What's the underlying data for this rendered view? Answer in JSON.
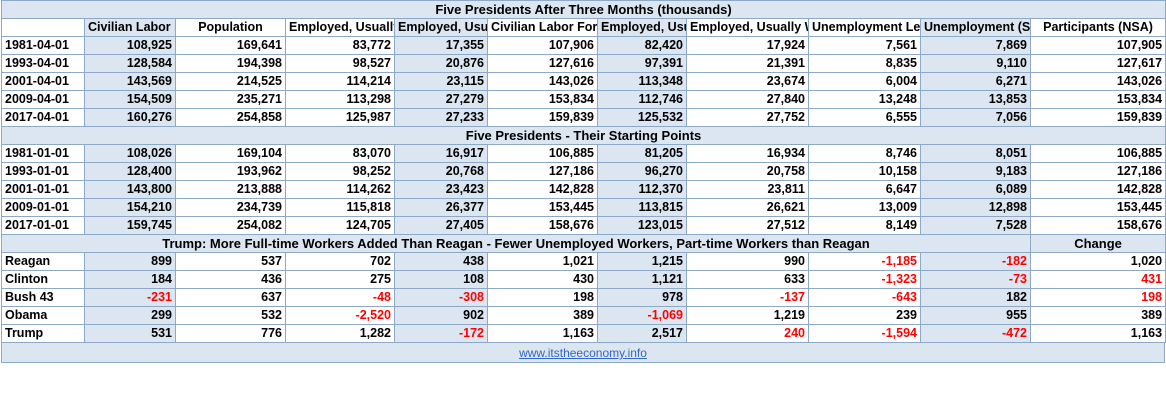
{
  "title": "Five Presidents After Three Months (thousands)",
  "columns": [
    "",
    "Civilian Labor Force (SA)",
    "Population",
    "Employed, Usually Work Full Time (SA)",
    "Employed, Usually Work Part Time (SA)",
    "Civilian Labor Force (NSA)",
    "Employed, Usually Work Full Time (NSA)",
    "Employed, Usually Work Part Time (NSA)",
    "Unemployment Level (NSA)",
    "Unemployment (SA)",
    "Participants (NSA)"
  ],
  "section1": {
    "rows": [
      [
        "1981-04-01",
        "108,925",
        "169,641",
        "83,772",
        "17,355",
        "107,906",
        "82,420",
        "17,924",
        "7,561",
        "7,869",
        "107,905"
      ],
      [
        "1993-04-01",
        "128,584",
        "194,398",
        "98,527",
        "20,876",
        "127,616",
        "97,391",
        "21,391",
        "8,835",
        "9,110",
        "127,617"
      ],
      [
        "2001-04-01",
        "143,569",
        "214,525",
        "114,214",
        "23,115",
        "143,026",
        "113,348",
        "23,674",
        "6,004",
        "6,271",
        "143,026"
      ],
      [
        "2009-04-01",
        "154,509",
        "235,271",
        "113,298",
        "27,279",
        "153,834",
        "112,746",
        "27,840",
        "13,248",
        "13,853",
        "153,834"
      ],
      [
        "2017-04-01",
        "160,276",
        "254,858",
        "125,987",
        "27,233",
        "159,839",
        "125,532",
        "27,752",
        "6,555",
        "7,056",
        "159,839"
      ]
    ]
  },
  "section2": {
    "title": "Five Presidents - Their Starting Points",
    "rows": [
      [
        "1981-01-01",
        "108,026",
        "169,104",
        "83,070",
        "16,917",
        "106,885",
        "81,205",
        "16,934",
        "8,746",
        "8,051",
        "106,885"
      ],
      [
        "1993-01-01",
        "128,400",
        "193,962",
        "98,252",
        "20,768",
        "127,186",
        "96,270",
        "20,758",
        "10,158",
        "9,183",
        "127,186"
      ],
      [
        "2001-01-01",
        "143,800",
        "213,888",
        "114,262",
        "23,423",
        "142,828",
        "112,370",
        "23,811",
        "6,647",
        "6,089",
        "142,828"
      ],
      [
        "2009-01-01",
        "154,210",
        "234,739",
        "115,818",
        "26,377",
        "153,445",
        "113,815",
        "26,621",
        "13,009",
        "12,898",
        "153,445"
      ],
      [
        "2017-01-01",
        "159,745",
        "254,082",
        "124,705",
        "27,405",
        "158,676",
        "123,015",
        "27,512",
        "8,149",
        "7,528",
        "158,676"
      ]
    ]
  },
  "section3": {
    "title": "Trump: More Full-time Workers Added Than Reagan - Fewer Unemployed Workers, Part-time Workers than Reagan",
    "change_label": "Change",
    "rows": [
      {
        "cells": [
          "Reagan",
          "899",
          "537",
          "702",
          "438",
          "1,021",
          "1,215",
          "990",
          "-1,185",
          "-182",
          "1,020"
        ],
        "neg": [
          8,
          9
        ]
      },
      {
        "cells": [
          "Clinton",
          "184",
          "436",
          "275",
          "108",
          "430",
          "1,121",
          "633",
          "-1,323",
          "-73",
          "431"
        ],
        "neg": [
          8,
          9,
          10
        ]
      },
      {
        "cells": [
          "Bush 43",
          "-231",
          "637",
          "-48",
          "-308",
          "198",
          "978",
          "-137",
          "-643",
          "182",
          "198"
        ],
        "neg": [
          1,
          3,
          4,
          7,
          8,
          10
        ]
      },
      {
        "cells": [
          "Obama",
          "299",
          "532",
          "-2,520",
          "902",
          "389",
          "-1,069",
          "1,219",
          "239",
          "955",
          "389"
        ],
        "neg": [
          3,
          6
        ]
      },
      {
        "cells": [
          "Trump",
          "531",
          "776",
          "1,282",
          "-172",
          "1,163",
          "2,517",
          "240",
          "-1,594",
          "-472",
          "1,163"
        ],
        "neg": [
          4,
          7,
          8,
          9
        ]
      }
    ]
  },
  "footer": {
    "link": "www.itstheeconomy.info"
  },
  "colors": {
    "shade": "#dce6f1",
    "border": "#8ea9c8",
    "negative": "#ff0000",
    "link": "#3366cc"
  }
}
